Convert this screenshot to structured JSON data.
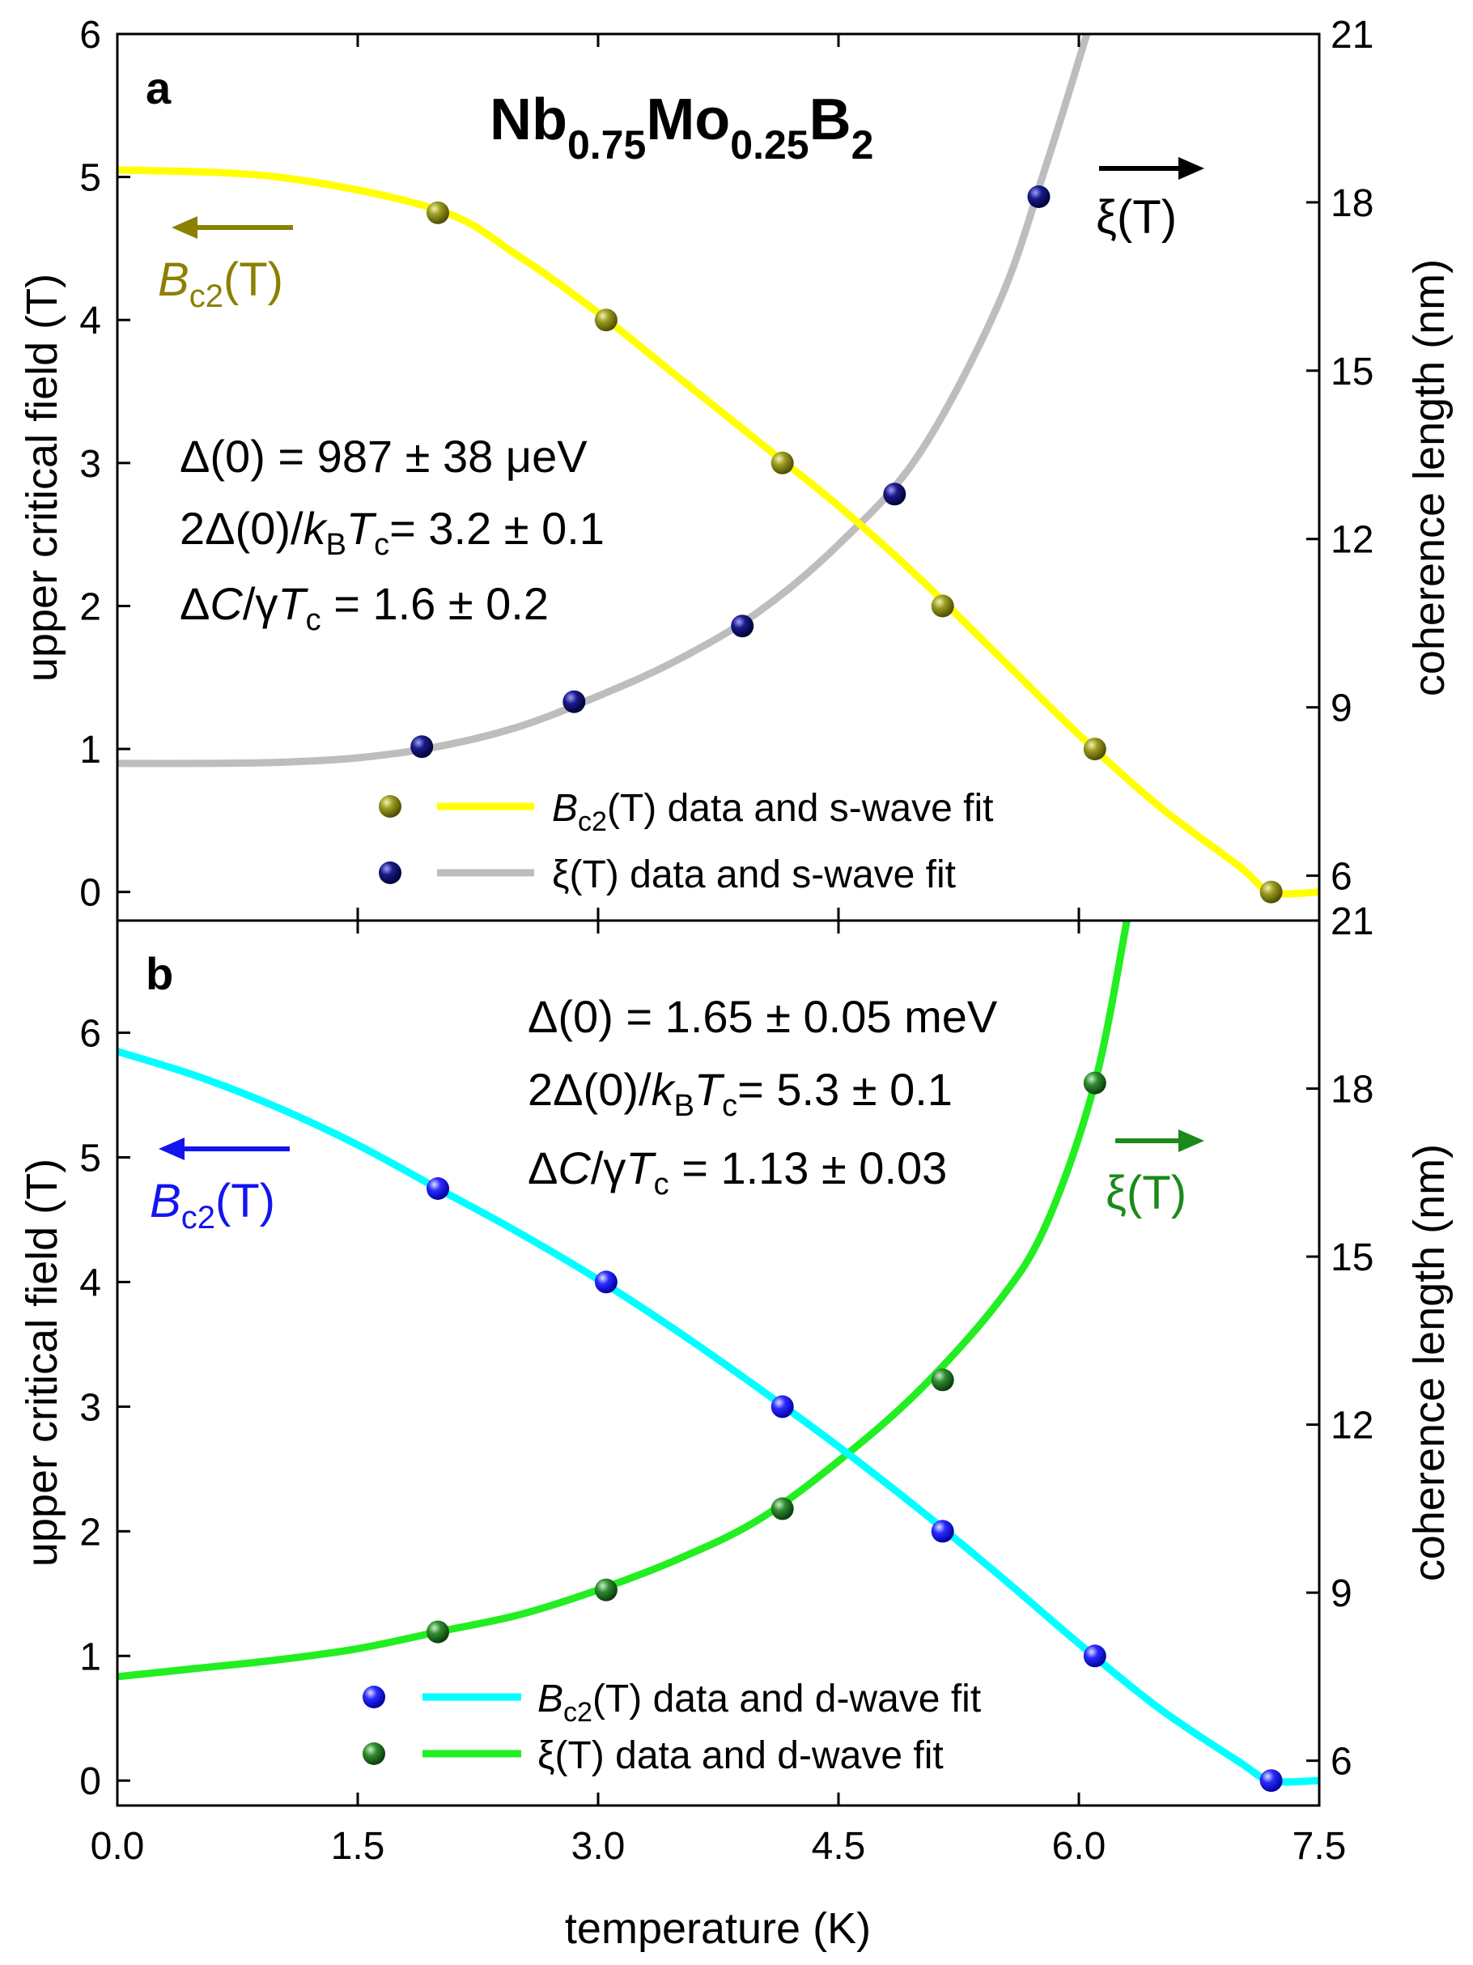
{
  "figure": {
    "x_axis": {
      "label": "temperature (K)",
      "range": [
        0.0,
        7.5
      ],
      "ticks": [
        0.0,
        1.5,
        3.0,
        4.5,
        6.0,
        7.5
      ],
      "tick_labels": [
        "0.0",
        "1.5",
        "3.0",
        "4.5",
        "6.0",
        "7.5"
      ]
    },
    "colors": {
      "bc2_s_marker": "#8a8a10",
      "bc2_s_fit": "#ffff00",
      "bc2_s_label": "#8b8000",
      "xi_s_marker": "#101070",
      "xi_s_fit": "#bdbdbd",
      "bc2_d_marker": "#1a1aff",
      "bc2_d_fit": "#00ffff",
      "bc2_d_label": "#1414f0",
      "xi_d_marker": "#2a7a2a",
      "xi_d_fit": "#22ee22",
      "xi_d_label": "#1a8a1a"
    }
  },
  "chart_data": [
    {
      "panel": "a",
      "type": "scatter",
      "title": "Nb0.75Mo0.25B2",
      "title_parts": {
        "el1": "Nb",
        "sub1": "0.75",
        "el2": "Mo",
        "sub2": "0.25",
        "el3": "B",
        "sub3": "2"
      },
      "xlabel": "temperature (K)",
      "xlim": [
        0.0,
        7.5
      ],
      "ylabel_left": "upper critical field (T)",
      "ylim_left": [
        -0.2,
        6.0
      ],
      "yticks_left": [
        0,
        1,
        2,
        3,
        4,
        5,
        6
      ],
      "ylabel_right": "coherence length (nm)",
      "ylim_right": [
        5.2,
        21.0
      ],
      "yticks_right": [
        6,
        9,
        12,
        15,
        18,
        21
      ],
      "legend_position": "bottom-center",
      "series": [
        {
          "name": "Bc2(T) data and s-wave fit",
          "legend_main": "B",
          "legend_sub": "c2",
          "legend_rest": "(T) data and s-wave fit",
          "axis": "left",
          "x": [
            2.0,
            3.05,
            4.15,
            5.15,
            6.1,
            7.2
          ],
          "y": [
            4.75,
            4.0,
            3.0,
            2.0,
            1.0,
            0.0
          ],
          "fit_x": [
            0.0,
            1.0,
            2.0,
            2.5,
            3.0,
            3.5,
            4.0,
            4.5,
            5.0,
            5.5,
            6.0,
            6.5,
            7.0,
            7.2,
            7.5
          ],
          "fit_y": [
            5.05,
            5.0,
            4.77,
            4.45,
            4.05,
            3.6,
            3.15,
            2.7,
            2.2,
            1.65,
            1.1,
            0.6,
            0.18,
            0.0,
            0.0
          ]
        },
        {
          "name": "ξ(T) data and s-wave fit",
          "legend_main": "ξ",
          "legend_sub": "",
          "legend_rest": "(T) data and s-wave fit",
          "axis": "right",
          "x": [
            1.9,
            2.85,
            3.9,
            4.85,
            5.75
          ],
          "y": [
            8.3,
            9.1,
            10.45,
            12.8,
            18.1
          ],
          "fit_x": [
            0.0,
            0.5,
            1.0,
            1.5,
            2.0,
            2.5,
            3.0,
            3.5,
            4.0,
            4.5,
            5.0,
            5.5,
            5.8,
            6.05
          ],
          "fit_y": [
            8.0,
            8.0,
            8.02,
            8.1,
            8.3,
            8.65,
            9.2,
            9.85,
            10.7,
            11.9,
            13.5,
            16.2,
            18.7,
            21.0
          ]
        }
      ],
      "annotations": {
        "panel_label": "a",
        "bc2_arrow_label": "Bc2(T)",
        "bc2_main": "B",
        "bc2_sub": "c2",
        "bc2_rest": "(T)",
        "xi_arrow_label": "ξ(T)",
        "xi_main": "ξ",
        "xi_rest": "(T)",
        "stats_gap": "Δ(0) = 987 ± 38 μeV",
        "stats_ratio": {
          "pre": "2Δ(0)/",
          "k": "k",
          "k_sub": "B",
          "t": "T",
          "t_sub": "c",
          "post": "= 3.2 ± 0.1"
        },
        "stats_jump": {
          "pre": "Δ",
          "c": "C",
          "mid": "/γ",
          "t": "T",
          "t_sub": "c",
          "post": " = 1.6 ± 0.2"
        }
      }
    },
    {
      "panel": "b",
      "type": "scatter",
      "xlabel": "temperature (K)",
      "xlim": [
        0.0,
        7.5
      ],
      "ylabel_left": "upper critical field (T)",
      "ylim_left": [
        -0.2,
        6.9
      ],
      "yticks_left": [
        0,
        1,
        2,
        3,
        4,
        5,
        6
      ],
      "ylabel_right": "coherence length (nm)",
      "ylim_right": [
        5.2,
        21.0
      ],
      "yticks_right": [
        6,
        9,
        12,
        15,
        18,
        21
      ],
      "legend_position": "bottom-center",
      "series": [
        {
          "name": "Bc2(T) data and d-wave fit",
          "legend_main": "B",
          "legend_sub": "c2",
          "legend_rest": "(T) data and d-wave fit",
          "axis": "left",
          "x": [
            2.0,
            3.05,
            4.15,
            5.15,
            6.1,
            7.2
          ],
          "y": [
            4.75,
            4.0,
            3.0,
            2.0,
            1.0,
            0.0
          ],
          "fit_x": [
            0.0,
            0.5,
            1.0,
            1.5,
            2.0,
            2.5,
            3.0,
            3.5,
            4.0,
            4.5,
            5.0,
            5.5,
            6.0,
            6.5,
            7.0,
            7.2,
            7.5
          ],
          "fit_y": [
            5.85,
            5.65,
            5.4,
            5.1,
            4.75,
            4.4,
            4.02,
            3.6,
            3.15,
            2.68,
            2.18,
            1.65,
            1.1,
            0.58,
            0.15,
            0.0,
            0.0
          ]
        },
        {
          "name": "ξ(T) data and d-wave fit",
          "legend_main": "ξ",
          "legend_sub": "",
          "legend_rest": "(T) data and d-wave fit",
          "axis": "right",
          "x": [
            2.0,
            3.05,
            4.15,
            5.15,
            6.1
          ],
          "y": [
            8.3,
            9.05,
            10.5,
            12.8,
            18.1
          ],
          "fit_x": [
            0.0,
            0.5,
            1.0,
            1.5,
            2.0,
            2.5,
            3.0,
            3.5,
            4.0,
            4.5,
            5.0,
            5.5,
            5.8,
            6.1,
            6.3
          ],
          "fit_y": [
            7.5,
            7.65,
            7.8,
            8.0,
            8.3,
            8.6,
            9.05,
            9.6,
            10.3,
            11.35,
            12.6,
            14.2,
            15.6,
            18.1,
            21.0
          ]
        }
      ],
      "annotations": {
        "panel_label": "b",
        "bc2_arrow_label": "Bc2(T)",
        "bc2_main": "B",
        "bc2_sub": "c2",
        "bc2_rest": "(T)",
        "xi_arrow_label": "ξ(T)",
        "xi_main": "ξ",
        "xi_rest": "(T)",
        "stats_gap": "Δ(0) = 1.65 ± 0.05 meV",
        "stats_ratio": {
          "pre": "2Δ(0)/",
          "k": "k",
          "k_sub": "B",
          "t": "T",
          "t_sub": "c",
          "post": "= 5.3 ± 0.1"
        },
        "stats_jump": {
          "pre": "Δ",
          "c": "C",
          "mid": "/γ",
          "t": "T",
          "t_sub": "c",
          "post": " = 1.13 ± 0.03"
        }
      }
    }
  ]
}
